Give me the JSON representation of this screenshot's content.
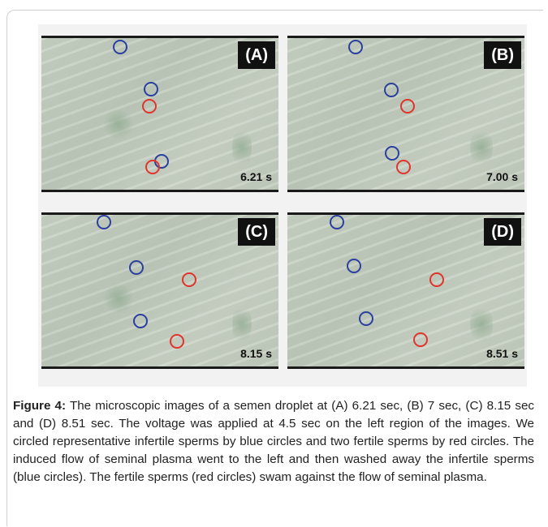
{
  "figure": {
    "panels": [
      {
        "label": "(A)",
        "time": "6.21 s"
      },
      {
        "label": "(B)",
        "time": "7.00 s"
      },
      {
        "label": "(C)",
        "time": "8.15 s"
      },
      {
        "label": "(D)",
        "time": "8.51 s"
      }
    ],
    "colors": {
      "infertile_circle": "#2a3f9e",
      "fertile_circle": "#e0342c"
    }
  },
  "caption": {
    "label": "Figure 4:",
    "text": " The microscopic images of a semen droplet at (A) 6.21 sec, (B) 7 sec, (C) 8.15 sec and (D) 8.51 sec. The voltage was applied at 4.5 sec on the left region of the images. We circled representative infertile sperms by blue circles and two fertile sperms by red circles. The induced flow of seminal plasma went to the left and then washed away the infertile sperms (blue circles). The fertile sperms (red circles) swam against the flow of seminal plasma."
  }
}
